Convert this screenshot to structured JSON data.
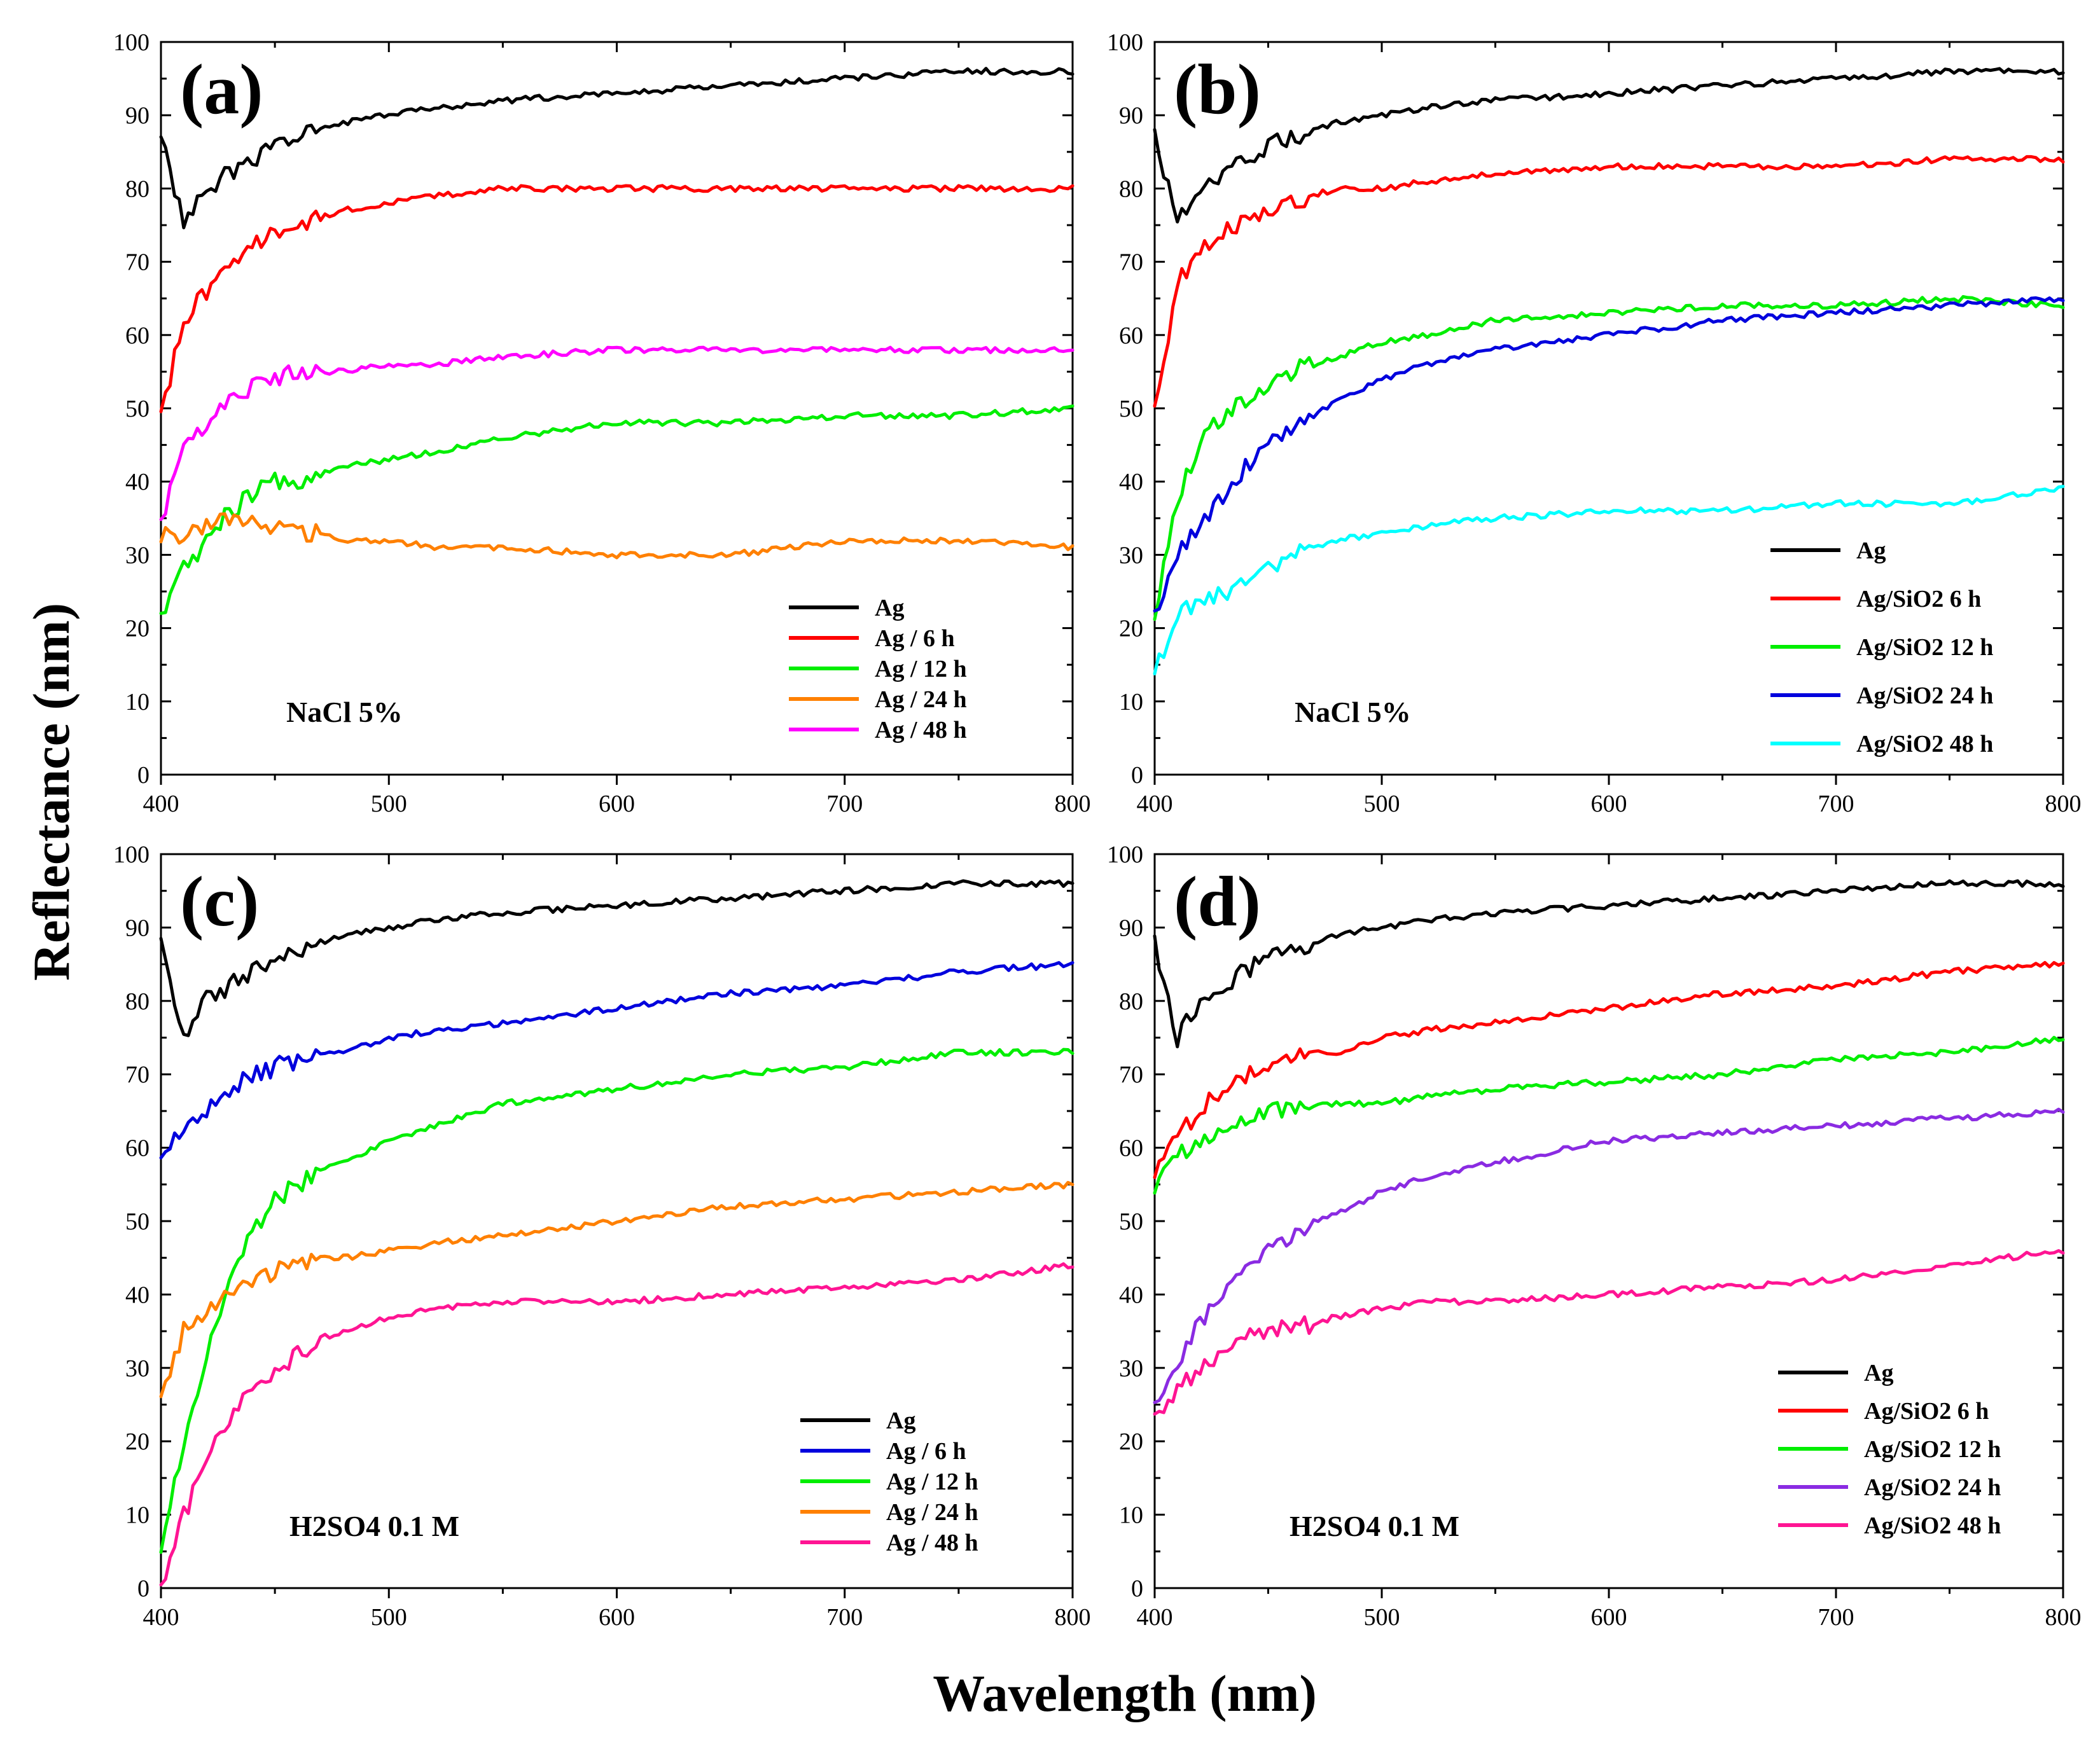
{
  "axes": {
    "xlabel": "Wavelength (nm)",
    "ylabel": "Reflectance (nm)",
    "xlim": [
      400,
      800
    ],
    "ylim": [
      0,
      100
    ],
    "xticks": [
      400,
      500,
      600,
      700,
      800
    ],
    "yticks": [
      0,
      10,
      20,
      30,
      40,
      50,
      60,
      70,
      80,
      90,
      100
    ]
  },
  "chart_data": [
    {
      "type": "line",
      "panel": "(a)",
      "condition": "NaCl  5%",
      "x": [
        400,
        410,
        420,
        430,
        440,
        450,
        460,
        470,
        480,
        500,
        520,
        550,
        600,
        650,
        700,
        750,
        800
      ],
      "series": [
        {
          "name": "Ag",
          "color": "#000000",
          "values": [
            88,
            75,
            80,
            82,
            84,
            86,
            87,
            88,
            89,
            90,
            91,
            92,
            93,
            94,
            95,
            96,
            96
          ]
        },
        {
          "name": "Ag / 6 h",
          "color": "#ff0000",
          "values": [
            49,
            62,
            66,
            69,
            72,
            74,
            75,
            76,
            77,
            78,
            79,
            80,
            80,
            80,
            80,
            80,
            80
          ]
        },
        {
          "name": "Ag / 12 h",
          "color": "#00ee00",
          "values": [
            21,
            28,
            32,
            36,
            38,
            40,
            40,
            41,
            42,
            43,
            44,
            46,
            48,
            48,
            49,
            49,
            50
          ]
        },
        {
          "name": "Ag / 24 h",
          "color": "#ff8000",
          "values": [
            33,
            32,
            34,
            35,
            34,
            34,
            33,
            33,
            32,
            32,
            31,
            31,
            30,
            30,
            32,
            32,
            31
          ]
        },
        {
          "name": "Ag / 48 h",
          "color": "#ff00ff",
          "values": [
            35,
            44,
            48,
            51,
            53,
            54,
            55,
            55,
            55,
            56,
            56,
            57,
            58,
            58,
            58,
            58,
            58
          ]
        }
      ]
    },
    {
      "type": "line",
      "panel": "(b)",
      "condition": "NaCl  5%",
      "x": [
        400,
        410,
        420,
        430,
        440,
        450,
        460,
        470,
        480,
        500,
        520,
        550,
        600,
        650,
        700,
        750,
        800
      ],
      "series": [
        {
          "name": "Ag",
          "color": "#000000",
          "values": [
            88,
            75,
            80,
            82,
            84,
            86,
            87,
            88,
            89,
            90,
            91,
            92,
            93,
            94,
            95,
            96,
            96
          ]
        },
        {
          "name": "Ag/SiO2 6 h",
          "color": "#ff0000",
          "values": [
            50,
            67,
            71,
            74,
            76,
            77,
            78,
            79,
            80,
            80,
            81,
            82,
            83,
            83,
            83,
            84,
            84
          ]
        },
        {
          "name": "Ag/SiO2 12 h",
          "color": "#00ee00",
          "values": [
            21,
            38,
            45,
            49,
            51,
            53,
            55,
            56,
            57,
            59,
            60,
            62,
            63,
            64,
            64,
            65,
            64
          ]
        },
        {
          "name": "Ag/SiO2 24 h",
          "color": "#0000dd",
          "values": [
            22,
            30,
            34,
            38,
            42,
            45,
            47,
            49,
            51,
            54,
            56,
            58,
            60,
            62,
            63,
            64,
            65
          ]
        },
        {
          "name": "Ag/SiO2 48 h",
          "color": "#00ffff",
          "values": [
            14,
            22,
            24,
            25,
            26,
            28,
            30,
            31,
            32,
            33,
            34,
            35,
            36,
            36,
            37,
            37,
            39
          ]
        }
      ]
    },
    {
      "type": "line",
      "panel": "(c)",
      "condition": "H2SO4 0.1 M",
      "x": [
        400,
        410,
        420,
        430,
        440,
        450,
        460,
        470,
        480,
        500,
        520,
        550,
        600,
        650,
        700,
        750,
        800
      ],
      "series": [
        {
          "name": "Ag",
          "color": "#000000",
          "values": [
            88,
            75,
            80,
            82,
            84,
            86,
            87,
            88,
            89,
            90,
            91,
            92,
            93,
            94,
            95,
            96,
            96
          ]
        },
        {
          "name": "Ag / 6 h",
          "color": "#0000dd",
          "values": [
            59,
            62,
            65,
            68,
            70,
            71,
            72,
            73,
            73,
            75,
            76,
            77,
            79,
            81,
            82,
            84,
            85
          ]
        },
        {
          "name": "Ag / 12 h",
          "color": "#00ee00",
          "values": [
            5,
            20,
            32,
            42,
            48,
            53,
            55,
            57,
            58,
            61,
            63,
            66,
            68,
            70,
            71,
            73,
            73
          ]
        },
        {
          "name": "Ag / 24 h",
          "color": "#ff8000",
          "values": [
            25,
            35,
            38,
            40,
            42,
            43,
            44,
            45,
            45,
            46,
            47,
            48,
            50,
            52,
            53,
            54,
            55
          ]
        },
        {
          "name": "Ag / 48 h",
          "color": "#ff1493",
          "values": [
            0,
            10,
            17,
            23,
            27,
            29,
            32,
            34,
            35,
            37,
            38,
            39,
            39,
            40,
            41,
            42,
            44
          ]
        }
      ]
    },
    {
      "type": "line",
      "panel": "(d)",
      "condition": "H2SO4 0.1 M",
      "x": [
        400,
        410,
        420,
        430,
        440,
        450,
        460,
        470,
        480,
        500,
        520,
        550,
        600,
        650,
        700,
        750,
        800
      ],
      "series": [
        {
          "name": "Ag",
          "color": "#000000",
          "values": [
            88,
            75,
            80,
            82,
            84,
            86,
            87,
            88,
            89,
            90,
            91,
            92,
            93,
            94,
            95,
            96,
            96
          ]
        },
        {
          "name": "Ag/SiO2 6 h",
          "color": "#ff0000",
          "values": [
            57,
            62,
            65,
            68,
            70,
            71,
            72,
            73,
            73,
            75,
            76,
            77,
            79,
            81,
            82,
            84,
            85
          ]
        },
        {
          "name": "Ag/SiO2 12 h",
          "color": "#00ee00",
          "values": [
            55,
            59,
            61,
            63,
            64,
            65,
            65,
            66,
            66,
            66,
            67,
            68,
            69,
            70,
            72,
            73,
            75
          ]
        },
        {
          "name": "Ag/SiO2 24 h",
          "color": "#8a2be2",
          "values": [
            25,
            31,
            36,
            40,
            43,
            46,
            48,
            50,
            51,
            54,
            56,
            58,
            61,
            62,
            63,
            64,
            65
          ]
        },
        {
          "name": "Ag/SiO2 48 h",
          "color": "#ff1493",
          "values": [
            23,
            27,
            30,
            32,
            34,
            35,
            36,
            36,
            37,
            38,
            39,
            39,
            40,
            41,
            42,
            44,
            46
          ]
        }
      ]
    }
  ]
}
